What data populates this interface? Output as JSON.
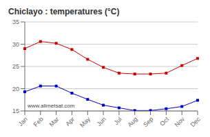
{
  "chart_data": {
    "type": "line",
    "title": "Chiclayo : temperatures (°C)",
    "categories": [
      "Jan",
      "Feb",
      "Mar",
      "Apr",
      "May",
      "Jun",
      "Jul",
      "Aug",
      "Sep",
      "Oct",
      "Nov",
      "Dec"
    ],
    "series": [
      {
        "color": "#cc0000",
        "marker": "square",
        "values": [
          29.0,
          30.6,
          30.2,
          28.8,
          26.6,
          24.8,
          23.5,
          23.3,
          23.3,
          23.5,
          25.2,
          26.8
        ]
      },
      {
        "color": "#0000cc",
        "marker": "square",
        "values": [
          19.3,
          20.6,
          20.6,
          19.0,
          17.6,
          16.3,
          15.7,
          15.1,
          15.1,
          15.5,
          16.0,
          17.4
        ]
      }
    ],
    "ylim": [
      15,
      35
    ],
    "yticks": [
      15,
      20,
      25,
      30,
      35
    ],
    "grid": true,
    "annotations": [
      "www.allmetsat.com"
    ]
  }
}
